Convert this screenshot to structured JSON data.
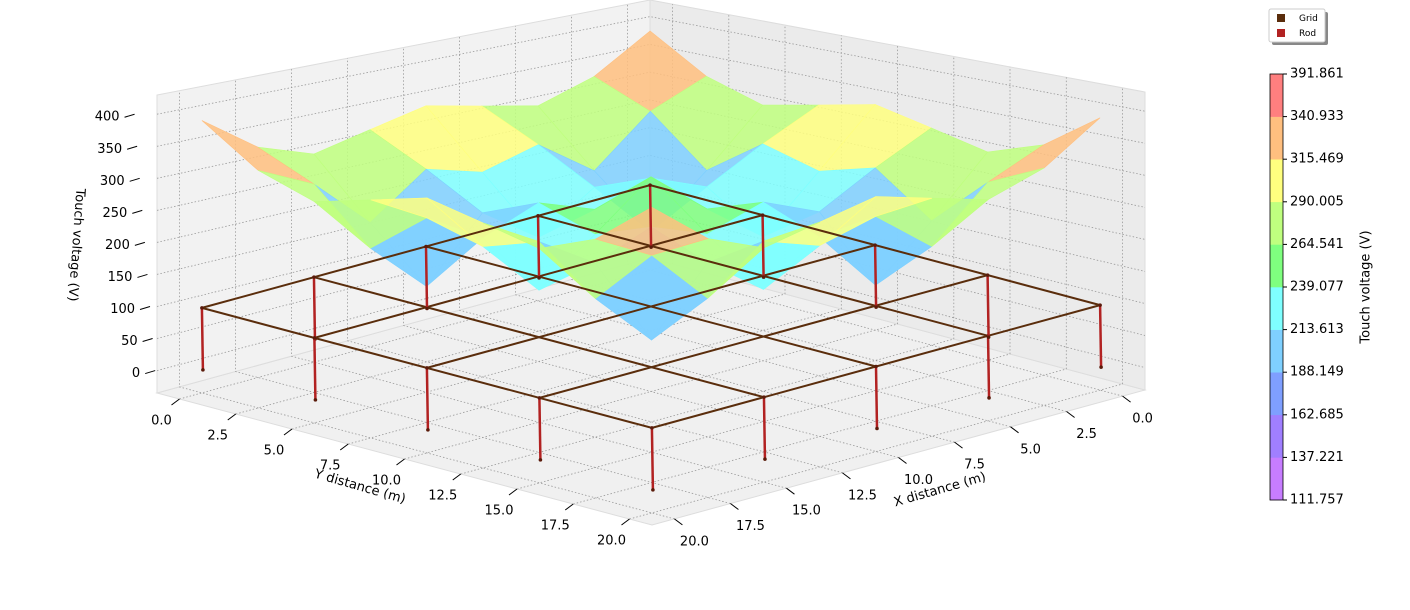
{
  "chart_data": {
    "type": "surface3d",
    "xlabel": "X distance (m)",
    "ylabel": "Y distance (m)",
    "zlabel": "Touch voltage (V)",
    "xlim": [
      -1,
      21
    ],
    "ylim": [
      -1,
      21
    ],
    "zlim": [
      -35,
      430
    ],
    "xticks": [
      {
        "value": 0,
        "label": "0.0"
      },
      {
        "value": 2.5,
        "label": "2.5"
      },
      {
        "value": 5,
        "label": "5.0"
      },
      {
        "value": 7.5,
        "label": "7.5"
      },
      {
        "value": 10,
        "label": "10.0"
      },
      {
        "value": 12.5,
        "label": "12.5"
      },
      {
        "value": 15,
        "label": "15.0"
      },
      {
        "value": 17.5,
        "label": "17.5"
      },
      {
        "value": 20,
        "label": "20.0"
      }
    ],
    "yticks": [
      {
        "value": 0,
        "label": "0.0"
      },
      {
        "value": 2.5,
        "label": "2.5"
      },
      {
        "value": 5,
        "label": "5.0"
      },
      {
        "value": 7.5,
        "label": "7.5"
      },
      {
        "value": 10,
        "label": "10.0"
      },
      {
        "value": 12.5,
        "label": "12.5"
      },
      {
        "value": 15,
        "label": "15.0"
      },
      {
        "value": 17.5,
        "label": "17.5"
      },
      {
        "value": 20,
        "label": "20.0"
      }
    ],
    "zticks": [
      0,
      50,
      100,
      150,
      200,
      250,
      300,
      350,
      400
    ],
    "grid": true,
    "surface": {
      "x": [
        0,
        2.5,
        5,
        7.5,
        10,
        12.5,
        15,
        17.5,
        20
      ],
      "y": [
        0,
        2.5,
        5,
        7.5,
        10,
        12.5,
        15,
        17.5,
        20
      ],
      "z": [
        [
          390,
          330,
          300,
          320,
          340,
          320,
          300,
          330,
          390
        ],
        [
          330,
          290,
          210,
          275,
          250,
          275,
          210,
          290,
          330
        ],
        [
          300,
          210,
          130,
          225,
          165,
          225,
          130,
          210,
          300
        ],
        [
          320,
          275,
          225,
          260,
          230,
          260,
          225,
          275,
          320
        ],
        [
          340,
          250,
          165,
          230,
          300,
          230,
          165,
          250,
          340
        ],
        [
          320,
          275,
          225,
          260,
          230,
          260,
          225,
          275,
          320
        ],
        [
          300,
          210,
          130,
          225,
          165,
          225,
          130,
          210,
          300
        ],
        [
          330,
          290,
          210,
          275,
          250,
          275,
          210,
          290,
          330
        ],
        [
          390,
          330,
          300,
          320,
          340,
          320,
          300,
          330,
          390
        ]
      ]
    },
    "grid_conductors": {
      "name": "Grid",
      "color": "#5a2d0c",
      "x": [
        0,
        5,
        10,
        15,
        20
      ],
      "y": [
        0,
        5,
        10,
        15,
        20
      ]
    },
    "rods": {
      "name": "Rod",
      "color": "#b22222",
      "x": [
        0,
        5,
        10,
        15,
        20,
        20,
        20,
        20,
        20,
        15,
        10,
        5,
        0,
        0,
        0,
        0
      ],
      "y": [
        0,
        0,
        0,
        0,
        0,
        5,
        10,
        15,
        20,
        20,
        20,
        20,
        20,
        15,
        10,
        5
      ]
    },
    "colorbar": {
      "label": "Touch voltage (V)",
      "ticks": [
        111.757,
        137.221,
        162.685,
        188.149,
        213.613,
        239.077,
        264.541,
        290.005,
        315.469,
        340.933,
        391.861
      ],
      "colors": [
        "#c77dff",
        "#a07fff",
        "#7f9fff",
        "#7fd0ff",
        "#7fffff",
        "#7fff7f",
        "#bfff7f",
        "#ffff7f",
        "#ffbf7f",
        "#ff7f7f"
      ]
    }
  }
}
